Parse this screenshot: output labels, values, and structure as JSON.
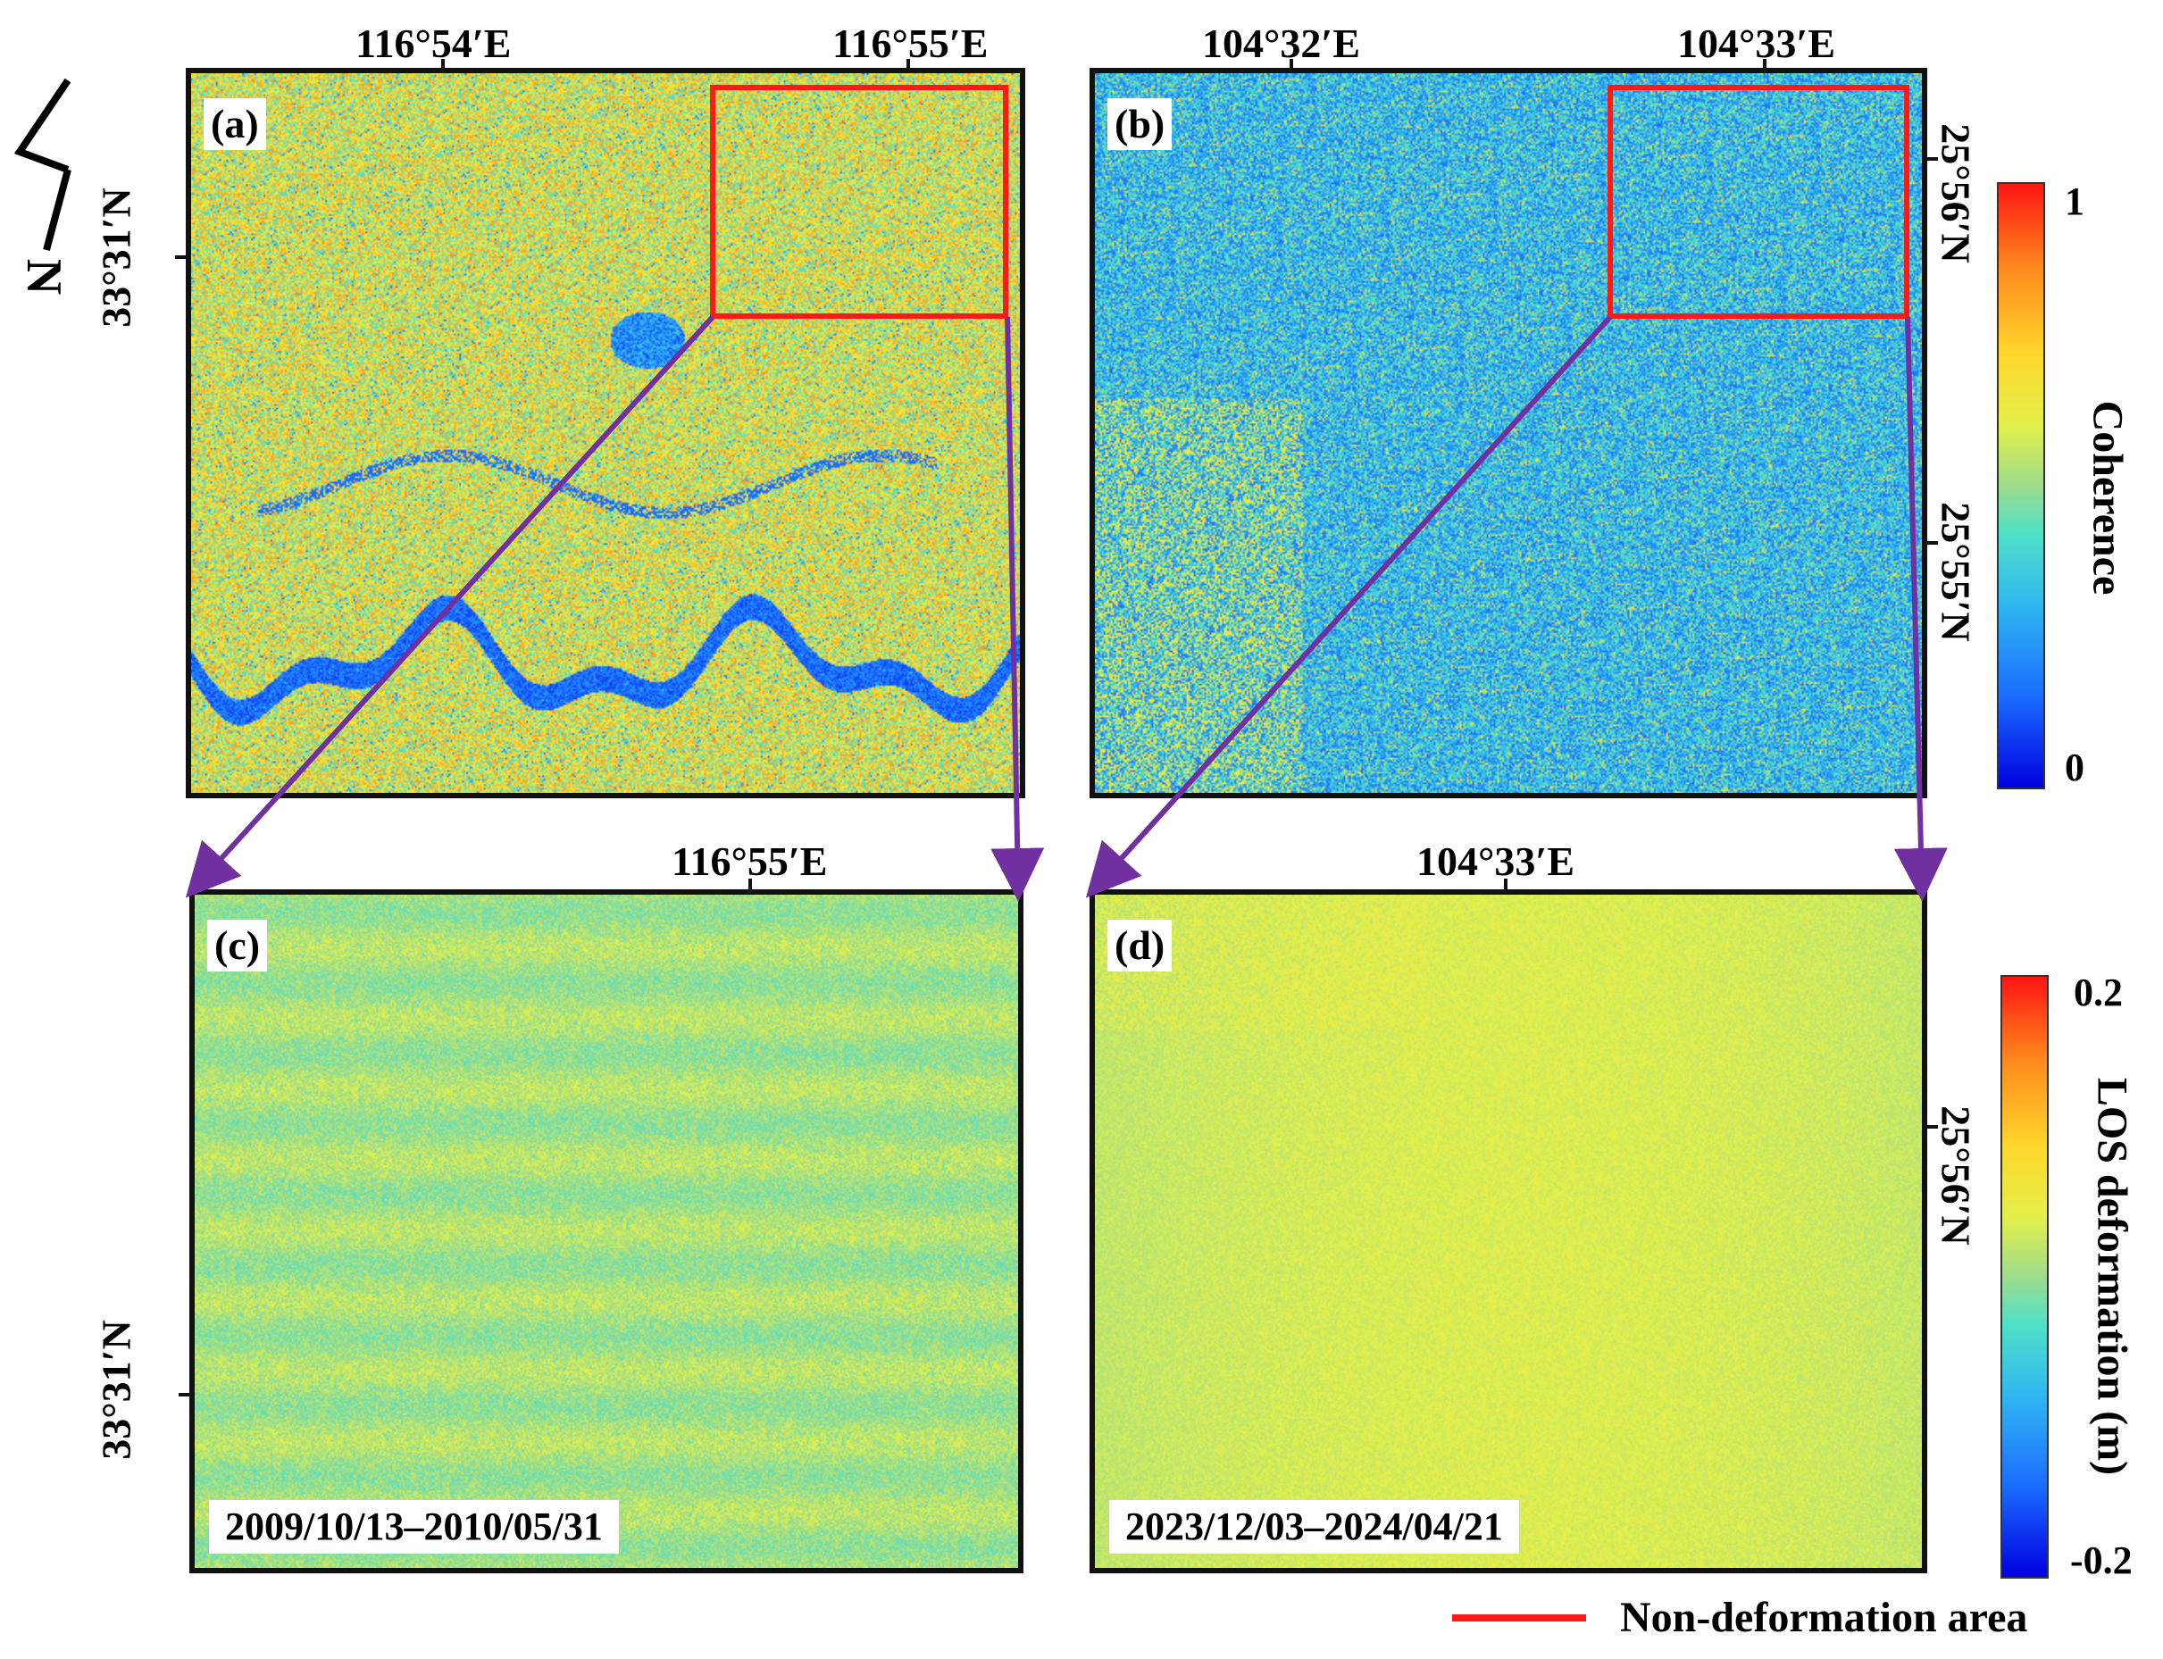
{
  "panels": {
    "a": {
      "label": "(a)",
      "top_ticks": [
        "116°54′E",
        "116°55′E"
      ],
      "left_tick": "33°31′N"
    },
    "b": {
      "label": "(b)",
      "top_ticks": [
        "104°32′E",
        "104°33′E"
      ],
      "right_ticks": [
        "25°56′N",
        "25°55′N"
      ]
    },
    "c": {
      "label": "(c)",
      "top_tick": "116°55′E",
      "left_tick": "33°31′N",
      "date_range": "2009/10/13–2010/05/31"
    },
    "d": {
      "label": "(d)",
      "top_tick": "104°33′E",
      "right_tick": "25°56′N",
      "date_range": "2023/12/03–2024/04/21"
    }
  },
  "colorbars": {
    "coherence": {
      "title": "Coherence",
      "max": "1",
      "min": "0"
    },
    "deformation": {
      "title": "LOS deformation (m)",
      "max": "0.2",
      "min": "-0.2"
    }
  },
  "legend": {
    "label": "Non-deformation area",
    "color": "#ff1a1a"
  },
  "north_arrow": {
    "letter": "N"
  },
  "colors": {
    "zoom_lines": "#7030a0",
    "highlight_box": "#ff1a1a"
  }
}
